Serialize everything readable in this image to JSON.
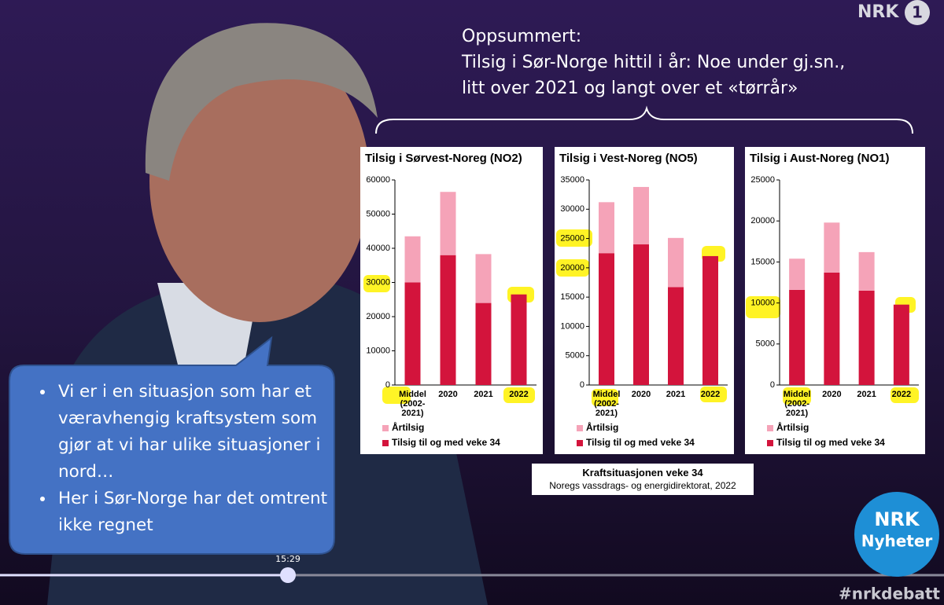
{
  "header": {
    "lines": [
      "Oppsummert:",
      "Tilsig i Sør-Norge hittil i år: Noe under gj.sn.,",
      "litt over 2021 og langt over et «tørrår»"
    ]
  },
  "chart_data": [
    {
      "type": "bar",
      "stacked": true,
      "title": "Tilsig i Sørvest-Noreg (NO2)",
      "categories": [
        "Middel (2002-2021)",
        "2020",
        "2021",
        "2022"
      ],
      "series": [
        {
          "name": "Tilsig til og med veke 34",
          "color": "#d3143c",
          "values": [
            30000,
            38000,
            24000,
            26500
          ]
        },
        {
          "name": "Årtilsig",
          "color": "#f5a3b8",
          "values": [
            13500,
            18500,
            14300,
            null
          ]
        }
      ],
      "ylim": [
        0,
        60000
      ],
      "yticks": [
        0,
        10000,
        20000,
        30000,
        40000,
        50000,
        60000
      ]
    },
    {
      "type": "bar",
      "stacked": true,
      "title": "Tilsig i Vest-Noreg (NO5)",
      "categories": [
        "Middel (2002-2021)",
        "2020",
        "2021",
        "2022"
      ],
      "series": [
        {
          "name": "Tilsig til og med veke 34",
          "color": "#d3143c",
          "values": [
            22500,
            24000,
            16700,
            22000
          ]
        },
        {
          "name": "Årtilsig",
          "color": "#f5a3b8",
          "values": [
            8700,
            9800,
            8400,
            null
          ]
        }
      ],
      "ylim": [
        0,
        35000
      ],
      "yticks": [
        0,
        5000,
        10000,
        15000,
        20000,
        25000,
        30000,
        35000
      ]
    },
    {
      "type": "bar",
      "stacked": true,
      "title": "Tilsig i Aust-Noreg (NO1)",
      "categories": [
        "Middel (2002-2021)",
        "2020",
        "2021",
        "2022"
      ],
      "series": [
        {
          "name": "Tilsig til og med veke 34",
          "color": "#d3143c",
          "values": [
            11600,
            13700,
            11500,
            9800
          ]
        },
        {
          "name": "Årtilsig",
          "color": "#f5a3b8",
          "values": [
            3800,
            6100,
            4700,
            null
          ]
        }
      ],
      "ylim": [
        0,
        25000
      ],
      "yticks": [
        0,
        5000,
        10000,
        15000,
        20000,
        25000
      ]
    }
  ],
  "source": {
    "title": "Kraftsituasjonen veke 34",
    "subtitle": "Noregs vassdrags- og energidirektorat, 2022"
  },
  "bubble": {
    "bullets": [
      "Vi er i en situasjon som har et væravhengig kraftsystem som  gjør at vi har ulike situasjoner i nord…",
      "Her i Sør-Norge har det omtrent ikke regnet"
    ]
  },
  "player": {
    "time": "15:29"
  },
  "logos": {
    "channel": "NRK",
    "channel_number": "1",
    "news_brand": "NRK",
    "news_name": "Nyheter",
    "hashtag": "#nrkdebatt"
  }
}
